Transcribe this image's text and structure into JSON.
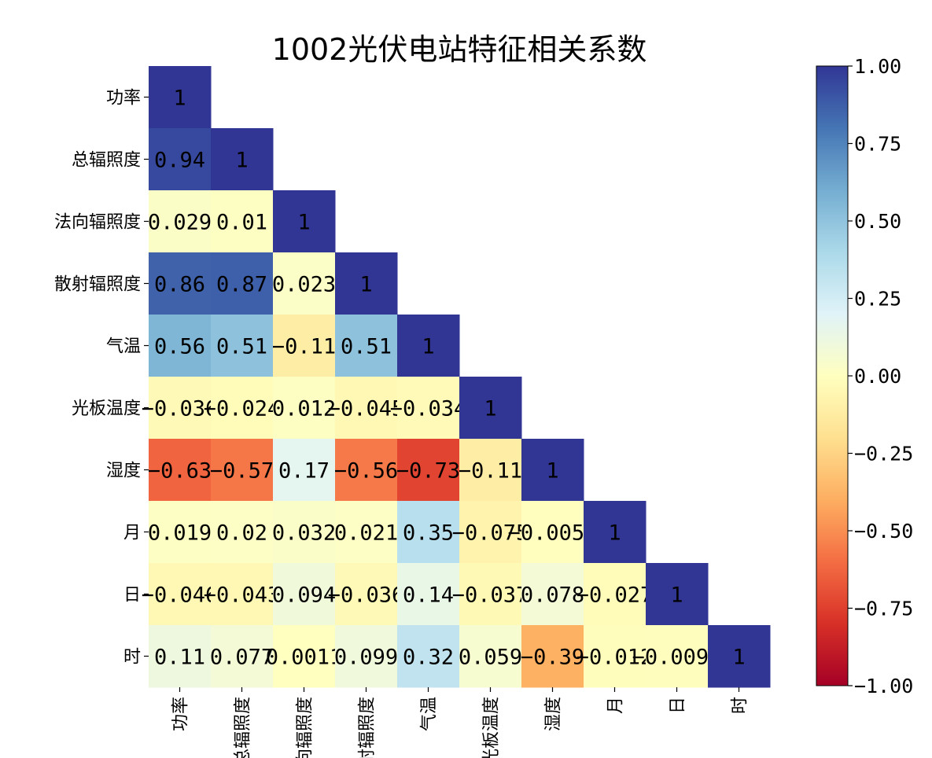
{
  "chart_data": {
    "type": "heatmap",
    "title": "1002光伏电站特征相关系数",
    "labels": [
      "功率",
      "总辐照度",
      "法向辐照度",
      "散射辐照度",
      "气温",
      "光板温度",
      "湿度",
      "月",
      "日",
      "时"
    ],
    "cell_labels": [
      [
        "1"
      ],
      [
        "0.94",
        "1"
      ],
      [
        "0.029",
        "0.01",
        "1"
      ],
      [
        "0.86",
        "0.87",
        "0.023",
        "1"
      ],
      [
        "0.56",
        "0.51",
        "-0.11",
        "0.51",
        "1"
      ],
      [
        "-0.036",
        "-0.024",
        "0.012",
        "-0.045",
        "-0.034",
        "1"
      ],
      [
        "-0.63",
        "-0.57",
        "0.17",
        "-0.56",
        "-0.73",
        "-0.11",
        "1"
      ],
      [
        "0.019",
        "0.02",
        "0.032",
        "0.021",
        "0.35",
        "-0.075",
        "-0.0059",
        "1"
      ],
      [
        "-0.046",
        "-0.043",
        "0.094",
        "-0.036",
        "0.14",
        "-0.037",
        "0.078",
        "-0.027",
        "1"
      ],
      [
        "0.11",
        "0.077",
        "0.0011",
        "0.099",
        "0.32",
        "0.059",
        "-0.39",
        "-0.012",
        "-0.0098",
        "1"
      ]
    ],
    "mask": "upper triangle hidden",
    "colormap": "RdYlBu",
    "vmin": -1.0,
    "vmax": 1.0,
    "colorbar_ticks": [
      "-1.00",
      "-0.75",
      "-0.50",
      "-0.25",
      "0.00",
      "0.25",
      "0.50",
      "0.75",
      "1.00"
    ]
  }
}
